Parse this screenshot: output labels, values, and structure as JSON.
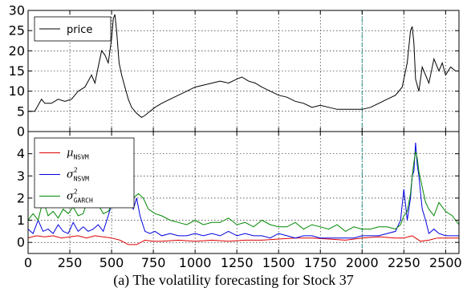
{
  "caption": "(a) The volatility forecasting for Stock 37",
  "chart_data": [
    {
      "type": "line",
      "panel": "top",
      "xlim": [
        0,
        2580
      ],
      "ylim": [
        0,
        30
      ],
      "x_ticks": [
        0,
        250,
        500,
        750,
        1000,
        1250,
        1500,
        1750,
        2000,
        2250,
        2500
      ],
      "y_ticks": [
        0,
        5,
        10,
        15,
        20,
        25,
        30
      ],
      "grid": true,
      "legend_position": "top-left",
      "vertical_marker_x": 2000,
      "series": [
        {
          "name": "price",
          "color": "#000000",
          "x": [
            0,
            40,
            80,
            100,
            140,
            180,
            220,
            260,
            300,
            340,
            380,
            400,
            420,
            440,
            460,
            480,
            500,
            510,
            520,
            530,
            545,
            560,
            580,
            600,
            620,
            650,
            680,
            700,
            730,
            760,
            800,
            850,
            900,
            950,
            1000,
            1050,
            1100,
            1150,
            1200,
            1250,
            1280,
            1320,
            1360,
            1400,
            1450,
            1500,
            1550,
            1600,
            1650,
            1700,
            1750,
            1800,
            1850,
            1900,
            1950,
            2000,
            2050,
            2100,
            2150,
            2200,
            2240,
            2270,
            2290,
            2300,
            2310,
            2320,
            2340,
            2360,
            2400,
            2430,
            2460,
            2480,
            2500,
            2530,
            2560,
            2580
          ],
          "y": [
            5,
            5,
            8,
            7,
            7,
            8,
            7.5,
            8,
            10,
            11,
            14,
            12,
            16,
            20,
            19,
            17,
            23,
            28,
            29,
            25,
            17,
            14,
            11,
            8,
            6,
            4.5,
            3.5,
            4,
            5,
            6,
            7,
            8,
            9,
            10,
            11,
            11.5,
            12,
            12.5,
            12,
            13,
            13.5,
            12.5,
            12,
            11,
            10,
            9,
            8.5,
            7.5,
            7,
            6,
            6.5,
            6,
            5.5,
            5.5,
            5.5,
            5.5,
            6,
            7,
            8,
            9,
            11,
            17,
            25,
            26,
            22,
            13,
            10,
            16,
            12,
            18,
            15,
            17,
            14,
            16,
            15,
            15
          ]
        }
      ]
    },
    {
      "type": "line",
      "panel": "bottom",
      "xlim": [
        0,
        2580
      ],
      "ylim": [
        -0.5,
        5
      ],
      "x_ticks": [
        0,
        250,
        500,
        750,
        1000,
        1250,
        1500,
        1750,
        2000,
        2250,
        2500
      ],
      "x_tick_labels": [
        "0",
        "250",
        "500",
        "750",
        "1000",
        "1250",
        "1500",
        "1750",
        "2000",
        "2250",
        "2500"
      ],
      "y_ticks": [
        0,
        1,
        2,
        3,
        4
      ],
      "grid": true,
      "legend_position": "top-left",
      "vertical_marker_x": 2000,
      "series": [
        {
          "name": "μ_NSVM",
          "legend_symbol": "μ",
          "legend_superscript": "",
          "legend_subscript": "NSVM",
          "color": "#e00000",
          "x": [
            0,
            50,
            100,
            150,
            200,
            250,
            300,
            350,
            400,
            450,
            500,
            550,
            600,
            650,
            700,
            750,
            800,
            900,
            1000,
            1100,
            1200,
            1300,
            1400,
            1500,
            1600,
            1700,
            1800,
            1900,
            2000,
            2100,
            2200,
            2250,
            2300,
            2350,
            2400,
            2450,
            2500,
            2580
          ],
          "y": [
            0.2,
            0.3,
            0.25,
            0.3,
            0.2,
            0.25,
            0.3,
            0.2,
            0.3,
            0.25,
            0.2,
            0.1,
            -0.1,
            -0.1,
            0.1,
            0.05,
            0.05,
            0.1,
            0.05,
            0.1,
            0.05,
            0.1,
            0.1,
            0.15,
            0.2,
            0.2,
            0.15,
            0.1,
            0.2,
            0.25,
            0.2,
            0.2,
            0.3,
            0.05,
            0.1,
            0.2,
            0.2,
            0.2
          ]
        },
        {
          "name": "σ²_NSVM",
          "legend_symbol": "σ",
          "legend_superscript": "2",
          "legend_subscript": "NSVM",
          "color": "#0000e0",
          "x": [
            0,
            30,
            60,
            90,
            120,
            150,
            180,
            210,
            240,
            270,
            300,
            330,
            360,
            390,
            420,
            450,
            480,
            510,
            530,
            550,
            570,
            590,
            610,
            630,
            650,
            670,
            700,
            730,
            760,
            800,
            850,
            900,
            950,
            1000,
            1050,
            1100,
            1150,
            1200,
            1250,
            1300,
            1350,
            1400,
            1450,
            1500,
            1550,
            1600,
            1650,
            1700,
            1750,
            1800,
            1850,
            1900,
            1950,
            2000,
            2050,
            2100,
            2150,
            2200,
            2230,
            2250,
            2270,
            2290,
            2300,
            2310,
            2320,
            2330,
            2340,
            2360,
            2380,
            2400,
            2430,
            2460,
            2500,
            2540,
            2580
          ],
          "y": [
            0.6,
            0.4,
            1.0,
            0.5,
            0.6,
            0.4,
            0.8,
            0.5,
            0.4,
            0.9,
            0.5,
            0.7,
            0.5,
            0.6,
            0.8,
            0.5,
            1.2,
            2.0,
            2.6,
            3.0,
            2.4,
            2.8,
            1.9,
            1.5,
            2.0,
            1.2,
            0.5,
            0.4,
            0.5,
            0.3,
            0.4,
            0.3,
            0.3,
            0.4,
            0.3,
            0.4,
            0.3,
            0.5,
            0.3,
            0.4,
            0.3,
            0.3,
            0.2,
            0.4,
            0.3,
            0.2,
            0.3,
            0.3,
            0.2,
            0.2,
            0.2,
            0.2,
            0.2,
            0.3,
            0.3,
            0.3,
            0.4,
            0.5,
            1.0,
            2.4,
            1.0,
            2.0,
            3.0,
            3.2,
            4.5,
            3.5,
            3.0,
            1.5,
            1.0,
            0.4,
            0.6,
            0.4,
            0.3,
            0.3,
            0.3
          ]
        },
        {
          "name": "σ²_GARCH",
          "legend_symbol": "σ",
          "legend_superscript": "2",
          "legend_subscript": "GARCH",
          "color": "#008800",
          "x": [
            0,
            30,
            60,
            90,
            120,
            150,
            180,
            210,
            240,
            270,
            300,
            330,
            360,
            390,
            420,
            450,
            480,
            510,
            530,
            550,
            570,
            600,
            630,
            660,
            690,
            720,
            760,
            800,
            850,
            900,
            950,
            1000,
            1050,
            1100,
            1150,
            1200,
            1250,
            1300,
            1350,
            1400,
            1450,
            1500,
            1550,
            1600,
            1650,
            1700,
            1750,
            1800,
            1850,
            1900,
            1950,
            2000,
            2050,
            2100,
            2150,
            2200,
            2230,
            2250,
            2270,
            2290,
            2300,
            2310,
            2320,
            2330,
            2340,
            2360,
            2380,
            2400,
            2430,
            2460,
            2500,
            2540,
            2580
          ],
          "y": [
            1.0,
            1.3,
            1.0,
            1.9,
            1.2,
            1.4,
            1.1,
            1.5,
            1.3,
            1.6,
            1.2,
            1.3,
            2.0,
            1.6,
            1.7,
            1.3,
            1.4,
            1.8,
            2.2,
            2.4,
            2.0,
            2.1,
            2.0,
            2.2,
            2.0,
            1.5,
            1.3,
            1.2,
            1.0,
            0.9,
            0.8,
            1.0,
            0.8,
            0.9,
            0.9,
            1.1,
            0.8,
            0.9,
            0.7,
            1.0,
            0.8,
            0.7,
            0.7,
            0.9,
            0.6,
            0.8,
            0.7,
            0.6,
            0.8,
            0.5,
            0.7,
            0.6,
            0.6,
            0.7,
            0.7,
            0.6,
            0.8,
            1.2,
            1.4,
            2.2,
            3.0,
            3.6,
            4.1,
            3.8,
            3.2,
            2.5,
            1.8,
            1.5,
            1.2,
            1.8,
            1.4,
            1.2,
            0.8
          ]
        }
      ]
    }
  ]
}
